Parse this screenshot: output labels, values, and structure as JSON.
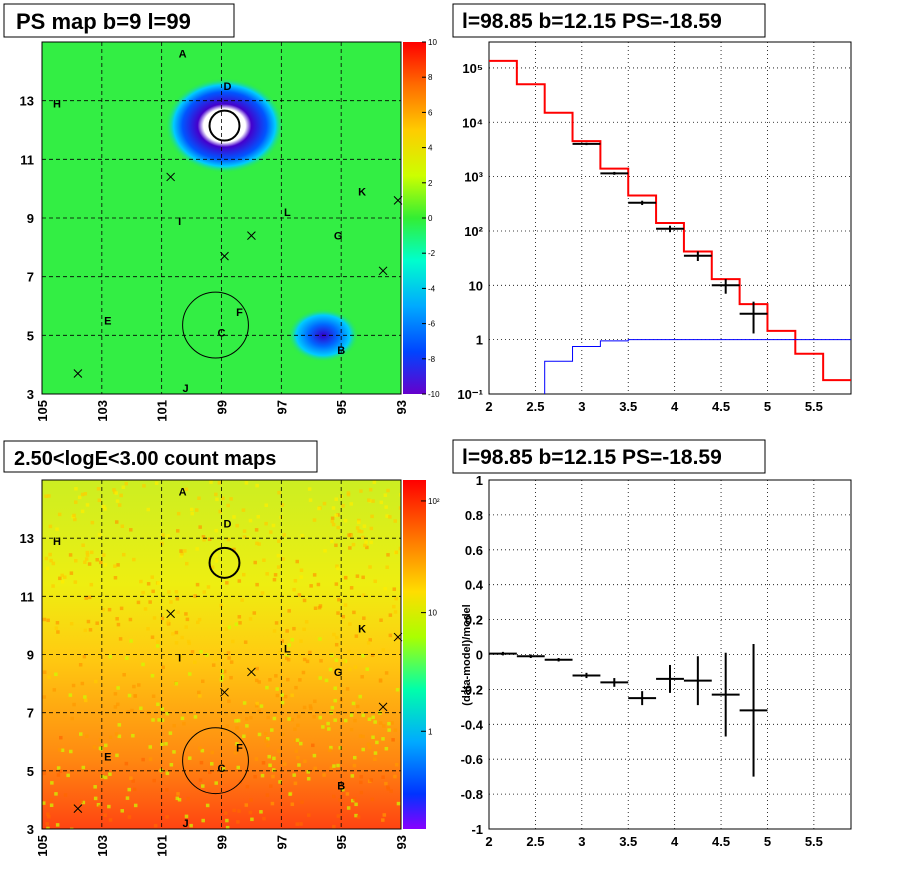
{
  "chart_data": [
    {
      "type": "heatmap",
      "title": "PS map b=9 l=99",
      "x_ticks": [
        "105",
        "103",
        "101",
        "99",
        "97",
        "95",
        "93"
      ],
      "y_ticks": [
        "13",
        "11",
        "9",
        "7",
        "5",
        "3"
      ],
      "xlim": [
        105,
        93
      ],
      "ylim": [
        3,
        15
      ],
      "colorbar_ticks": [
        "10",
        "8",
        "6",
        "4",
        "2",
        "0",
        "-2",
        "-4",
        "-6",
        "-8",
        "-10"
      ],
      "zlim": [
        -10,
        10
      ],
      "grid": true,
      "sources": [
        {
          "name": "A",
          "l": 100.3,
          "b": 14.6
        },
        {
          "name": "D",
          "l": 98.8,
          "b": 13.5
        },
        {
          "name": "H",
          "l": 104.5,
          "b": 12.9
        },
        {
          "name": "K",
          "l": 94.3,
          "b": 9.9
        },
        {
          "name": "L",
          "l": 96.8,
          "b": 9.2
        },
        {
          "name": "I",
          "l": 100.4,
          "b": 8.9
        },
        {
          "name": "G",
          "l": 95.1,
          "b": 8.4
        },
        {
          "name": "F",
          "l": 98.4,
          "b": 5.8
        },
        {
          "name": "E",
          "l": 102.8,
          "b": 5.5
        },
        {
          "name": "C",
          "l": 99.0,
          "b": 5.1
        },
        {
          "name": "B",
          "l": 95.0,
          "b": 4.5
        },
        {
          "name": "J",
          "l": 100.2,
          "b": 3.2
        }
      ],
      "crosses": [
        {
          "l": 100.7,
          "b": 10.4
        },
        {
          "l": 98.0,
          "b": 8.4
        },
        {
          "l": 98.9,
          "b": 7.7
        },
        {
          "l": 93.6,
          "b": 7.2
        },
        {
          "l": 93.1,
          "b": 9.6
        },
        {
          "l": 103.8,
          "b": 3.7
        }
      ],
      "circles": [
        {
          "l": 98.9,
          "b": 12.15,
          "r": 0.5
        },
        {
          "l": 99.2,
          "b": 5.35,
          "r": 1.1
        }
      ],
      "features": [
        {
          "l": 98.9,
          "b": 12.15,
          "value": -10
        },
        {
          "l": 95.6,
          "b": 5.0,
          "value": -6
        }
      ]
    },
    {
      "type": "line",
      "title": "l=98.85 b=12.15 PS=-18.59",
      "x_ticks": [
        "2",
        "2.5",
        "3",
        "3.5",
        "4",
        "4.5",
        "5",
        "5.5"
      ],
      "y_ticks": [
        "10⁵",
        "10⁴",
        "10³",
        "10²",
        "10",
        "1",
        "10⁻¹"
      ],
      "xlim": [
        2.0,
        5.9
      ],
      "ylim": [
        0.1,
        300000
      ],
      "log_y": true,
      "grid": true,
      "series": [
        {
          "color": "#ff0000",
          "bin_edges": [
            2.0,
            2.3,
            2.6,
            2.9,
            3.2,
            3.5,
            3.8,
            4.1,
            4.4,
            4.7,
            5.0,
            5.3,
            5.6,
            5.9
          ],
          "values": [
            135000,
            50000,
            15000,
            4500,
            1400,
            450,
            140,
            42,
            13,
            4.5,
            1.45,
            0.55,
            0.18
          ]
        },
        {
          "color": "#0000ff",
          "bin_edges": [
            2.6,
            2.9,
            3.2,
            3.5,
            3.8,
            4.1,
            4.4,
            4.7,
            5.0,
            5.3,
            5.6,
            5.9
          ],
          "values": [
            0.4,
            0.75,
            0.95,
            1.0,
            1.0,
            1.0,
            1.0,
            1.0,
            1.0,
            1.0,
            1.0
          ]
        },
        {
          "color": "#000000",
          "points": [
            {
              "x": 3.05,
              "y": 4000,
              "xerr": 0.15,
              "ylo": 3800,
              "yhi": 4200
            },
            {
              "x": 3.35,
              "y": 1150,
              "xerr": 0.15,
              "ylo": 1080,
              "yhi": 1220
            },
            {
              "x": 3.65,
              "y": 330,
              "xerr": 0.15,
              "ylo": 300,
              "yhi": 360
            },
            {
              "x": 3.95,
              "y": 110,
              "xerr": 0.15,
              "ylo": 95,
              "yhi": 125
            },
            {
              "x": 4.25,
              "y": 35,
              "xerr": 0.15,
              "ylo": 28,
              "yhi": 42
            },
            {
              "x": 4.55,
              "y": 10,
              "xerr": 0.15,
              "ylo": 7,
              "yhi": 13
            },
            {
              "x": 4.85,
              "y": 3.0,
              "xerr": 0.15,
              "ylo": 1.3,
              "yhi": 5.0
            }
          ]
        }
      ]
    },
    {
      "type": "heatmap",
      "title": "2.50<logE<3.00 count maps",
      "x_ticks": [
        "105",
        "103",
        "101",
        "99",
        "97",
        "95",
        "93"
      ],
      "y_ticks": [
        "13",
        "11",
        "9",
        "7",
        "5",
        "3"
      ],
      "xlim": [
        105,
        93
      ],
      "ylim": [
        3,
        15
      ],
      "log_z": true,
      "colorbar_ticks": [
        "10²",
        "10",
        "1"
      ],
      "grid": true
    },
    {
      "type": "scatter",
      "title": "l=98.85 b=12.15 PS=-18.59",
      "ylabel": "(data-model)/model",
      "x_ticks": [
        "2",
        "2.5",
        "3",
        "3.5",
        "4",
        "4.5",
        "5",
        "5.5"
      ],
      "y_ticks": [
        "1",
        "0.8",
        "0.6",
        "0.4",
        "0.2",
        "0",
        "-0.2",
        "-0.4",
        "-0.6",
        "-0.8",
        "-1"
      ],
      "xlim": [
        2.0,
        5.9
      ],
      "ylim": [
        -1,
        1
      ],
      "grid": true,
      "points": [
        {
          "x": 2.15,
          "y": 0.005,
          "xerr": 0.15,
          "yerr": 0.01
        },
        {
          "x": 2.45,
          "y": -0.01,
          "xerr": 0.15,
          "yerr": 0.01
        },
        {
          "x": 2.75,
          "y": -0.03,
          "xerr": 0.15,
          "yerr": 0.01
        },
        {
          "x": 3.05,
          "y": -0.12,
          "xerr": 0.15,
          "yerr": 0.015
        },
        {
          "x": 3.35,
          "y": -0.16,
          "xerr": 0.15,
          "yerr": 0.025
        },
        {
          "x": 3.65,
          "y": -0.25,
          "xerr": 0.15,
          "yerr": 0.04
        },
        {
          "x": 3.95,
          "y": -0.14,
          "xerr": 0.15,
          "yerr": 0.08
        },
        {
          "x": 4.25,
          "y": -0.15,
          "xerr": 0.15,
          "yerr": 0.14
        },
        {
          "x": 4.55,
          "y": -0.23,
          "xerr": 0.15,
          "yerr": 0.24
        },
        {
          "x": 4.85,
          "y": -0.32,
          "xerr": 0.15,
          "yerr": 0.38
        }
      ]
    }
  ]
}
